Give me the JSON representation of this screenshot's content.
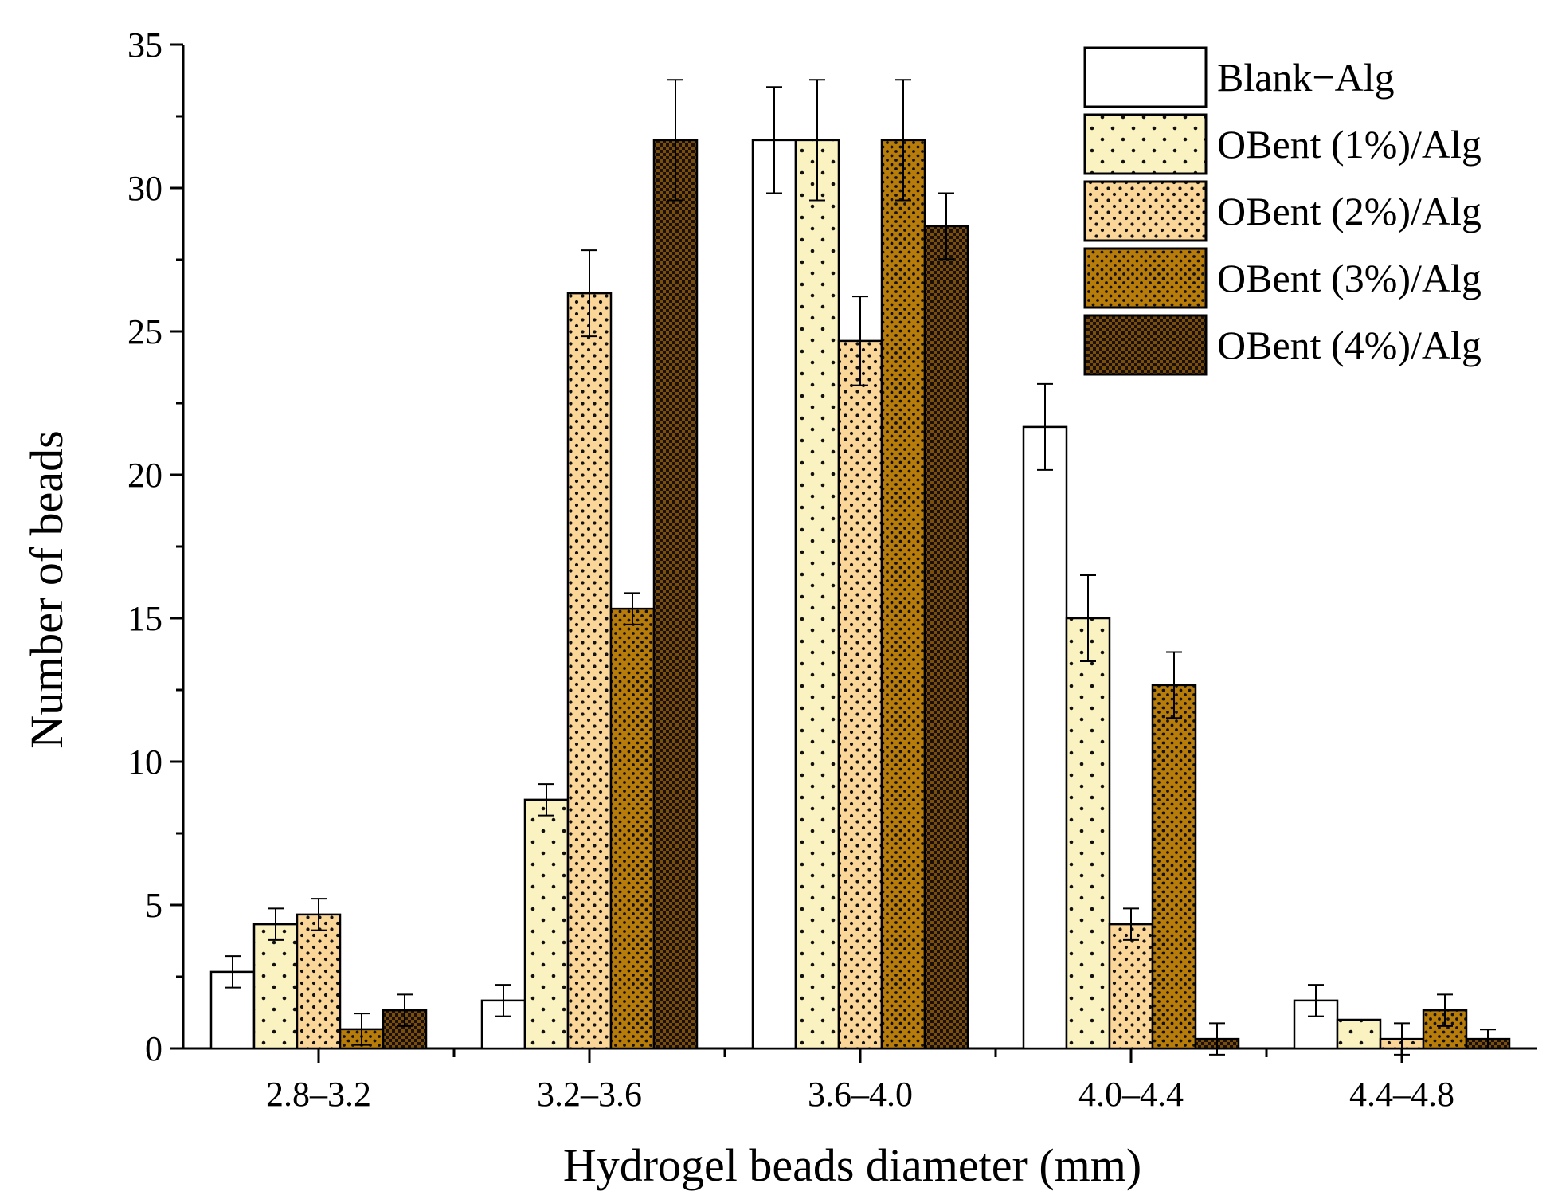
{
  "chart_data": {
    "type": "bar",
    "title": "",
    "xlabel": "Hydrogel beads diameter (mm)",
    "ylabel": "Number of beads",
    "ylim": [
      0,
      35
    ],
    "yticks": [
      0,
      5,
      10,
      15,
      20,
      25,
      30,
      35
    ],
    "grid": false,
    "legend_position": "top-right",
    "categories": [
      "2.8–3.2",
      "3.2–3.6",
      "3.6–4.0",
      "4.0–4.4",
      "4.4–4.8"
    ],
    "series": [
      {
        "name": "Blank−Alg",
        "color": "#ffffff",
        "pattern": "none",
        "values": [
          2.67,
          1.67,
          31.67,
          21.67,
          1.67
        ],
        "errors": [
          0.55,
          0.55,
          1.85,
          1.5,
          0.55
        ]
      },
      {
        "name": "OBent (1%)/Alg",
        "color": "#fbf2c1",
        "pattern": "sparse-dots",
        "values": [
          4.33,
          8.67,
          31.67,
          15.0,
          1.0
        ],
        "errors": [
          0.55,
          0.55,
          2.1,
          1.5,
          0.0
        ]
      },
      {
        "name": "OBent (2%)/Alg",
        "color": "#fbd699",
        "pattern": "dots",
        "values": [
          4.67,
          26.33,
          24.67,
          4.33,
          0.33
        ],
        "errors": [
          0.55,
          1.5,
          1.55,
          0.55,
          0.55
        ]
      },
      {
        "name": "OBent (3%)/Alg",
        "color": "#b87c0a",
        "pattern": "dense-dots",
        "values": [
          0.67,
          15.33,
          31.67,
          12.67,
          1.33
        ],
        "errors": [
          0.55,
          0.55,
          2.1,
          1.15,
          0.55
        ]
      },
      {
        "name": "OBent (4%)/Alg",
        "color": "#7a4f0e",
        "pattern": "checker",
        "values": [
          1.33,
          31.67,
          28.67,
          0.33,
          0.33
        ],
        "errors": [
          0.55,
          2.1,
          1.15,
          0.55,
          0.33
        ]
      }
    ]
  }
}
